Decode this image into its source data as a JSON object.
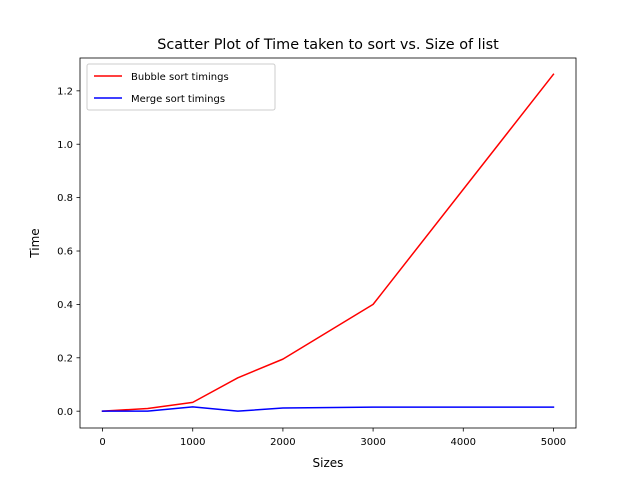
{
  "chart_data": {
    "type": "line",
    "title": "Scatter Plot of Time taken to sort vs. Size of list",
    "xlabel": "Sizes",
    "ylabel": "Time",
    "xlim": [
      -250,
      5250
    ],
    "ylim": [
      -0.063,
      1.323
    ],
    "x": [
      0,
      500,
      1000,
      1500,
      2000,
      3000,
      5000
    ],
    "x_ticks": [
      0,
      1000,
      2000,
      3000,
      4000,
      5000
    ],
    "x_tick_labels": [
      "0",
      "1000",
      "2000",
      "3000",
      "4000",
      "5000"
    ],
    "y_ticks": [
      0.0,
      0.2,
      0.4,
      0.6,
      0.8,
      1.0,
      1.2
    ],
    "y_tick_labels": [
      "0.0",
      "0.2",
      "0.4",
      "0.6",
      "0.8",
      "1.0",
      "1.2"
    ],
    "grid": false,
    "legend_position": "upper-left",
    "series": [
      {
        "name": "Bubble sort timings",
        "color": "#ff0000",
        "values": [
          0.0,
          0.01,
          0.033,
          0.125,
          0.195,
          0.4,
          1.262
        ]
      },
      {
        "name": "Merge sort timings",
        "color": "#0000ff",
        "values": [
          0.0,
          0.0,
          0.016,
          0.0,
          0.012,
          0.015,
          0.015
        ]
      }
    ]
  }
}
